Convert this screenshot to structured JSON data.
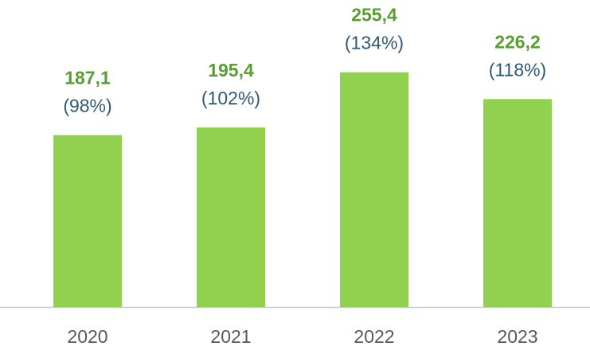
{
  "chart_data": {
    "type": "bar",
    "categories": [
      "2020",
      "2021",
      "2022",
      "2023"
    ],
    "values": [
      187.1,
      195.4,
      255.4,
      226.2
    ],
    "value_labels": [
      "187,1",
      "195,4",
      "255,4",
      "226,2"
    ],
    "share_labels": [
      "(98%)",
      "(102%)",
      "(134%)",
      "(118%)"
    ],
    "color": "#92d050",
    "ylim": [
      0,
      334
    ]
  }
}
